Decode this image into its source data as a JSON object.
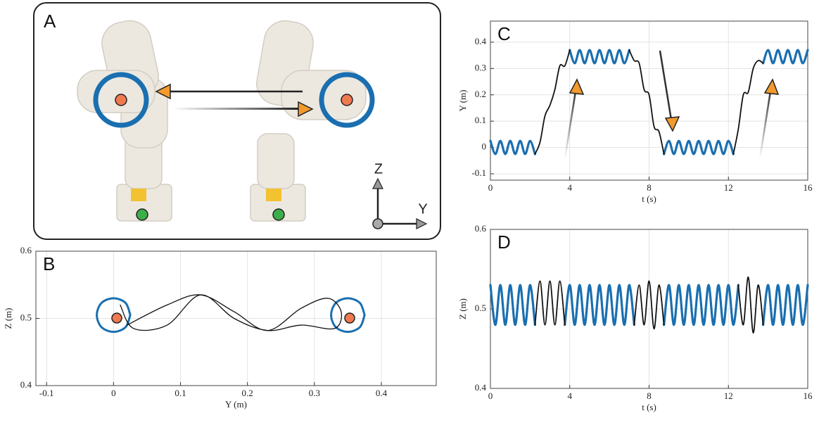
{
  "panel_a": {
    "label": "A",
    "axis_labels": {
      "vertical": "Z",
      "horizontal": "Y"
    }
  },
  "chart_data": [
    {
      "type": "line",
      "label": "B",
      "xlabel": "Y (m)",
      "ylabel": "Z (m)",
      "xlim": [
        -0.116,
        0.482
      ],
      "xticks": [
        -0.1,
        0,
        0.1,
        0.2,
        0.3,
        0.4
      ],
      "ylim": [
        0.4,
        0.6
      ],
      "yticks": [
        0.4,
        0.5,
        0.6
      ],
      "grid": true,
      "series": [
        {
          "color": "#1a6fb0",
          "line_width": 3,
          "x": [
            0.025,
            0.018,
            0,
            -0.018,
            -0.025,
            -0.018,
            0,
            0.018,
            0.025
          ],
          "values": [
            0.505,
            0.523,
            0.53,
            0.523,
            0.505,
            0.487,
            0.48,
            0.487,
            0.505
          ]
        },
        {
          "color": "#1a6fb0",
          "line_width": 3,
          "x": [
            0.375,
            0.368,
            0.35,
            0.332,
            0.325,
            0.332,
            0.35,
            0.368,
            0.375
          ],
          "values": [
            0.505,
            0.523,
            0.53,
            0.523,
            0.505,
            0.487,
            0.48,
            0.487,
            0.505
          ]
        },
        {
          "color": "#111111",
          "line_width": 1.3,
          "x": [
            0.02,
            0.08,
            0.13,
            0.18,
            0.23,
            0.28,
            0.32,
            0.34,
            0.33,
            0.28,
            0.23,
            0.18,
            0.13,
            0.08,
            0.03,
            0.01
          ],
          "values": [
            0.49,
            0.52,
            0.535,
            0.51,
            0.482,
            0.515,
            0.53,
            0.51,
            0.485,
            0.49,
            0.482,
            0.5,
            0.535,
            0.49,
            0.485,
            0.52
          ]
        }
      ]
    },
    {
      "type": "line",
      "label": "C",
      "xlabel": "t (s)",
      "ylabel": "Y (m)",
      "xlim": [
        0,
        16
      ],
      "xticks": [
        0,
        4,
        8,
        12,
        16
      ],
      "ylim": [
        -0.124,
        0.48
      ],
      "yticks": [
        -0.1,
        0,
        0.1,
        0.2,
        0.3,
        0.4
      ],
      "grid": true,
      "x": [
        0,
        0.25,
        0.5,
        0.75,
        1,
        1.25,
        1.5,
        1.75,
        2,
        2.25,
        2.5,
        2.75,
        3,
        3.25,
        3.5,
        3.75,
        4,
        4.25,
        4.5,
        4.75,
        5,
        5.25,
        5.5,
        5.75,
        6,
        6.25,
        6.5,
        6.75,
        7,
        7.25,
        7.5,
        7.75,
        8,
        8.25,
        8.5,
        8.75,
        9,
        9.25,
        9.5,
        9.75,
        10,
        10.25,
        10.5,
        10.75,
        11,
        11.25,
        11.5,
        11.75,
        12,
        12.25,
        12.5,
        12.75,
        13,
        13.25,
        13.5,
        13.75,
        14,
        14.25,
        14.5,
        14.75,
        15,
        15.25,
        15.5,
        15.75,
        16
      ],
      "series": [
        {
          "color": "#1a6fb0",
          "line_width": 3.2,
          "values": [
            0.025,
            -0.025,
            0.025,
            -0.025,
            0.025,
            -0.025,
            0.025,
            -0.025,
            0.025,
            -0.025,
            null,
            null,
            null,
            null,
            null,
            null,
            0.37,
            0.32,
            0.37,
            0.32,
            0.37,
            0.32,
            0.37,
            0.32,
            0.37,
            0.32,
            0.37,
            0.32,
            0.37,
            null,
            null,
            null,
            null,
            null,
            null,
            -0.025,
            0.025,
            -0.025,
            0.025,
            -0.025,
            0.025,
            -0.025,
            0.025,
            -0.025,
            0.025,
            -0.025,
            0.025,
            -0.025,
            0.025,
            -0.025,
            null,
            null,
            null,
            null,
            null,
            0.32,
            0.37,
            0.32,
            0.37,
            0.32,
            0.37,
            0.32,
            0.37,
            0.32,
            0.37
          ]
        },
        {
          "color": "#111111",
          "line_width": 1.8,
          "values": [
            null,
            null,
            null,
            null,
            null,
            null,
            null,
            null,
            null,
            -0.025,
            0.02,
            0.12,
            0.16,
            0.22,
            0.31,
            0.31,
            0.37,
            null,
            null,
            null,
            null,
            null,
            null,
            null,
            null,
            null,
            null,
            null,
            0.37,
            0.33,
            0.32,
            0.22,
            0.2,
            0.08,
            0.06,
            -0.025,
            null,
            null,
            null,
            null,
            null,
            null,
            null,
            null,
            null,
            null,
            null,
            null,
            null,
            -0.025,
            0.07,
            0.2,
            0.21,
            0.3,
            0.33,
            0.32,
            null,
            null,
            null,
            null,
            null,
            null,
            null,
            null,
            null
          ]
        }
      ]
    },
    {
      "type": "line",
      "label": "D",
      "xlabel": "t (s)",
      "ylabel": "Z (m)",
      "xlim": [
        0,
        16
      ],
      "xticks": [
        0,
        4,
        8,
        12,
        16
      ],
      "ylim": [
        0.4,
        0.6
      ],
      "yticks": [
        0.4,
        0.5,
        0.6
      ],
      "grid": true,
      "x": [
        0,
        0.25,
        0.5,
        0.75,
        1,
        1.25,
        1.5,
        1.75,
        2,
        2.25,
        2.5,
        2.75,
        3,
        3.25,
        3.5,
        3.75,
        4,
        4.25,
        4.5,
        4.75,
        5,
        5.25,
        5.5,
        5.75,
        6,
        6.25,
        6.5,
        6.75,
        7,
        7.25,
        7.5,
        7.75,
        8,
        8.25,
        8.5,
        8.75,
        9,
        9.25,
        9.5,
        9.75,
        10,
        10.25,
        10.5,
        10.75,
        11,
        11.25,
        11.5,
        11.75,
        12,
        12.25,
        12.5,
        12.75,
        13,
        13.25,
        13.5,
        13.75,
        14,
        14.25,
        14.5,
        14.75,
        15,
        15.25,
        15.5,
        15.75,
        16
      ],
      "series": [
        {
          "color": "#1a6fb0",
          "line_width": 3.2,
          "values": [
            0.53,
            0.48,
            0.53,
            0.48,
            0.53,
            0.48,
            0.53,
            0.48,
            0.53,
            0.48,
            null,
            null,
            null,
            null,
            null,
            0.48,
            0.53,
            0.48,
            0.53,
            0.48,
            0.53,
            0.48,
            0.53,
            0.48,
            0.53,
            0.48,
            0.53,
            0.48,
            0.53,
            0.48,
            null,
            null,
            null,
            null,
            null,
            0.48,
            0.53,
            0.48,
            0.53,
            0.48,
            0.53,
            0.48,
            0.53,
            0.48,
            0.53,
            0.48,
            0.53,
            0.48,
            0.53,
            0.48,
            0.53,
            null,
            null,
            null,
            null,
            0.48,
            0.53,
            0.48,
            0.53,
            0.48,
            0.53,
            0.48,
            0.53,
            0.48,
            0.53
          ]
        },
        {
          "color": "#111111",
          "line_width": 1.8,
          "values": [
            null,
            null,
            null,
            null,
            null,
            null,
            null,
            null,
            null,
            0.48,
            0.535,
            0.48,
            0.535,
            0.48,
            0.535,
            0.48,
            null,
            null,
            null,
            null,
            null,
            null,
            null,
            null,
            null,
            null,
            null,
            null,
            null,
            0.48,
            0.53,
            0.48,
            0.535,
            0.475,
            0.53,
            0.48,
            null,
            null,
            null,
            null,
            null,
            null,
            null,
            null,
            null,
            null,
            null,
            null,
            null,
            null,
            0.53,
            0.48,
            0.54,
            0.47,
            0.53,
            0.48,
            null,
            null,
            null,
            null,
            null,
            null,
            null,
            null,
            null
          ]
        }
      ]
    }
  ]
}
